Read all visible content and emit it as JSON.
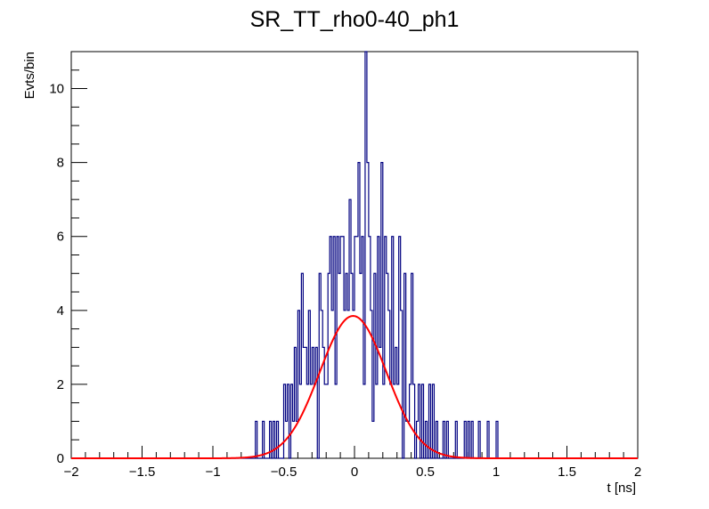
{
  "chart_data": {
    "type": "histogram",
    "title": "SR_TT_rho0-40_ph1",
    "xlabel": "t [ns]",
    "ylabel": "Evts/bin",
    "xlim": [
      -2,
      2
    ],
    "ylim": [
      0,
      11
    ],
    "x_ticks": [
      -2,
      -1.5,
      -1,
      -0.5,
      0,
      0.5,
      1,
      1.5,
      2
    ],
    "x_tick_labels": [
      "−2",
      "−1.5",
      "−1",
      "−0.5",
      "0",
      "0.5",
      "1",
      "1.5",
      "2"
    ],
    "y_ticks": [
      0,
      2,
      4,
      6,
      8,
      10
    ],
    "y_tick_labels": [
      "0",
      "2",
      "4",
      "6",
      "8",
      "10"
    ],
    "bin_width": 0.0125,
    "series": [
      {
        "kind": "histogram",
        "color": "#000080",
        "bins": [
          [
            -0.7,
            1
          ],
          [
            -0.65,
            1
          ],
          [
            -0.6,
            1
          ],
          [
            -0.575,
            1
          ],
          [
            -0.55,
            1
          ],
          [
            -0.5,
            2
          ],
          [
            -0.4875,
            1
          ],
          [
            -0.475,
            2
          ],
          [
            -0.45,
            2
          ],
          [
            -0.4375,
            1
          ],
          [
            -0.425,
            3
          ],
          [
            -0.4125,
            1
          ],
          [
            -0.4,
            4
          ],
          [
            -0.3875,
            2
          ],
          [
            -0.375,
            5
          ],
          [
            -0.3625,
            3
          ],
          [
            -0.35,
            3
          ],
          [
            -0.3375,
            2
          ],
          [
            -0.325,
            4
          ],
          [
            -0.3125,
            2
          ],
          [
            -0.3,
            3
          ],
          [
            -0.2875,
            2
          ],
          [
            -0.275,
            3
          ],
          [
            -0.25,
            5
          ],
          [
            -0.2375,
            4
          ],
          [
            -0.225,
            3
          ],
          [
            -0.2125,
            2
          ],
          [
            -0.2,
            2
          ],
          [
            -0.1875,
            5
          ],
          [
            -0.175,
            6
          ],
          [
            -0.1625,
            4
          ],
          [
            -0.15,
            6
          ],
          [
            -0.1375,
            2
          ],
          [
            -0.125,
            6
          ],
          [
            -0.1125,
            5
          ],
          [
            -0.1,
            6
          ],
          [
            -0.0875,
            6
          ],
          [
            -0.075,
            4
          ],
          [
            -0.0625,
            5
          ],
          [
            -0.05,
            4
          ],
          [
            -0.0375,
            7
          ],
          [
            -0.025,
            5
          ],
          [
            -0.0125,
            4
          ],
          [
            0.0,
            6
          ],
          [
            0.0125,
            6
          ],
          [
            0.025,
            8
          ],
          [
            0.0375,
            5
          ],
          [
            0.05,
            6
          ],
          [
            0.0625,
            2
          ],
          [
            0.075,
            11
          ],
          [
            0.0875,
            8
          ],
          [
            0.1,
            6
          ],
          [
            0.1125,
            4
          ],
          [
            0.125,
            1
          ],
          [
            0.1375,
            5
          ],
          [
            0.15,
            2
          ],
          [
            0.1625,
            6
          ],
          [
            0.175,
            3
          ],
          [
            0.1875,
            8
          ],
          [
            0.2,
            2
          ],
          [
            0.2125,
            6
          ],
          [
            0.225,
            5
          ],
          [
            0.2375,
            4
          ],
          [
            0.25,
            2
          ],
          [
            0.2625,
            6
          ],
          [
            0.275,
            2
          ],
          [
            0.2875,
            3
          ],
          [
            0.3,
            2
          ],
          [
            0.3125,
            6
          ],
          [
            0.325,
            4
          ],
          [
            0.35,
            5
          ],
          [
            0.3625,
            1
          ],
          [
            0.375,
            1
          ],
          [
            0.3875,
            2
          ],
          [
            0.4,
            5
          ],
          [
            0.4125,
            2
          ],
          [
            0.4375,
            1
          ],
          [
            0.45,
            2
          ],
          [
            0.475,
            2
          ],
          [
            0.5,
            1
          ],
          [
            0.525,
            2
          ],
          [
            0.55,
            2
          ],
          [
            0.575,
            1
          ],
          [
            0.625,
            1
          ],
          [
            0.65,
            1
          ],
          [
            0.7125,
            1
          ],
          [
            0.775,
            1
          ],
          [
            0.8,
            1
          ],
          [
            0.825,
            1
          ],
          [
            0.875,
            1
          ],
          [
            0.9375,
            1
          ],
          [
            1.0,
            1
          ]
        ]
      },
      {
        "kind": "gaussian_fit",
        "color": "#ff0000",
        "amplitude": 3.85,
        "mean": -0.01,
        "sigma": 0.235,
        "range": [
          -2,
          2
        ]
      }
    ]
  }
}
